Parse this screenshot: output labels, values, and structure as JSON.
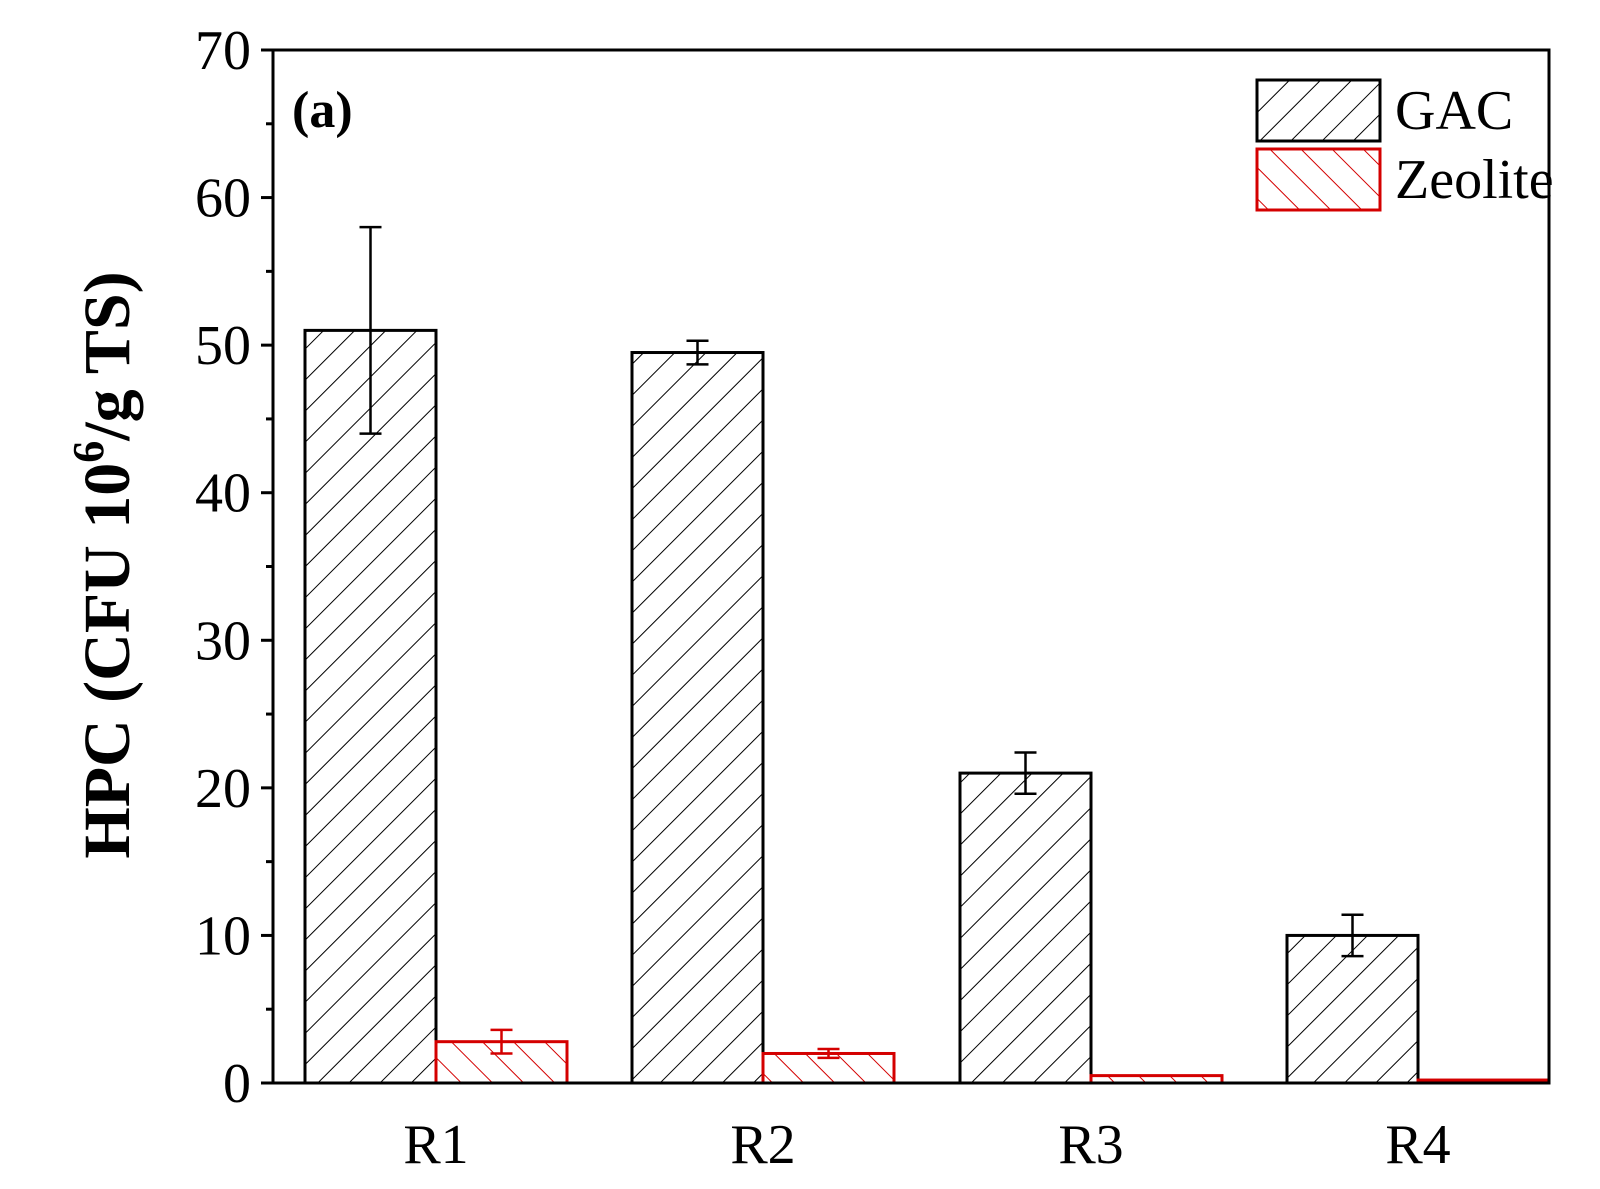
{
  "chart_data": {
    "type": "bar",
    "panel_label": "(a)",
    "ylabel": "HPC (CFU 10",
    "ylabel_superscript": "6",
    "ylabel_tail": "/g TS)",
    "xlabel": "",
    "categories": [
      "R1",
      "R2",
      "R3",
      "R4"
    ],
    "ylim": [
      0,
      70
    ],
    "yticks": [
      0,
      10,
      20,
      30,
      40,
      50,
      60,
      70
    ],
    "ytick_labels": [
      "0",
      "10",
      "20",
      "30",
      "40",
      "50",
      "60",
      "70"
    ],
    "minor_ytick_step": 5,
    "grid": false,
    "legend_position": "top-right",
    "series": [
      {
        "name": "GAC",
        "values": [
          51,
          49.5,
          21,
          10
        ],
        "errors": [
          7,
          0.8,
          1.4,
          1.4
        ],
        "color": "#000000",
        "hatch": "forward-diagonal"
      },
      {
        "name": "Zeolite",
        "values": [
          2.8,
          2,
          0.5,
          0.2
        ],
        "errors": [
          0.8,
          0.3,
          0,
          0
        ],
        "color": "#d40000",
        "hatch": "backward-diagonal"
      }
    ]
  }
}
